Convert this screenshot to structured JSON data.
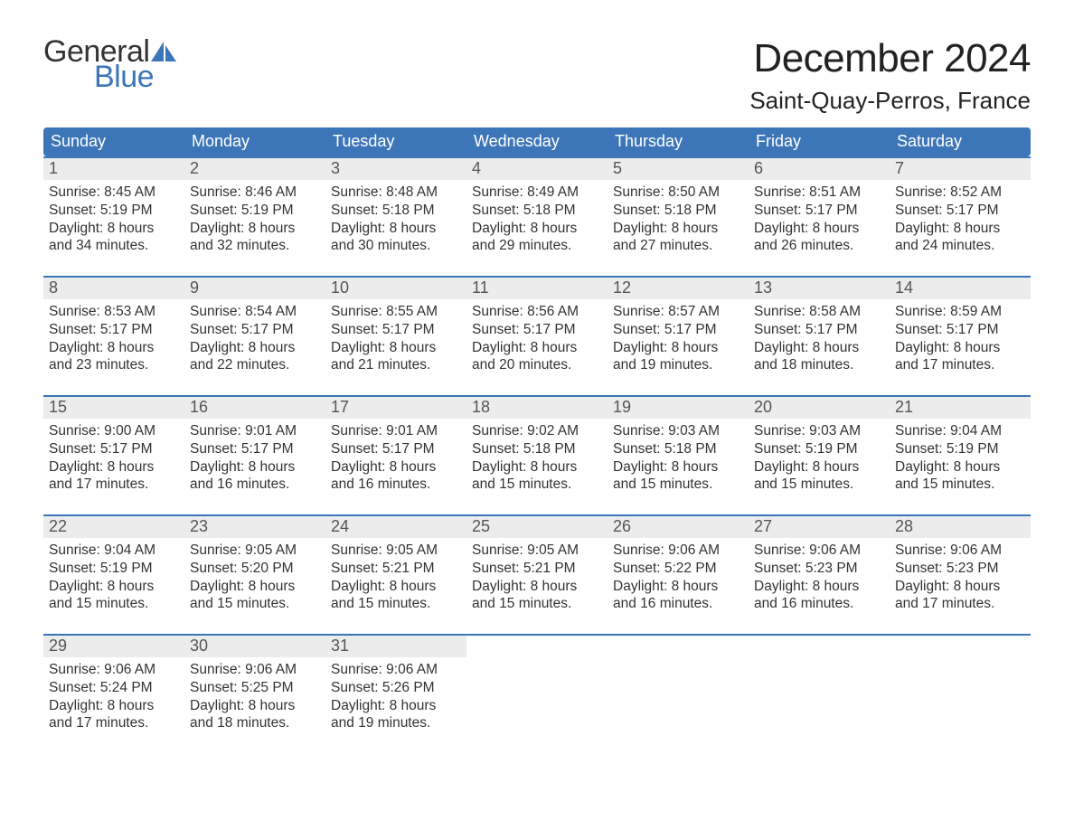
{
  "brand": {
    "text1": "General",
    "text2": "Blue",
    "accent_color": "#3d76b8"
  },
  "title": "December 2024",
  "location": "Saint-Quay-Perros, France",
  "header_bg": "#3d76b8",
  "daynum_bg": "#ececec",
  "text_color": "#333333",
  "weekdays": [
    "Sunday",
    "Monday",
    "Tuesday",
    "Wednesday",
    "Thursday",
    "Friday",
    "Saturday"
  ],
  "weeks": [
    [
      {
        "n": "1",
        "sunrise": "8:45 AM",
        "sunset": "5:19 PM",
        "daylight": "8 hours and 34 minutes."
      },
      {
        "n": "2",
        "sunrise": "8:46 AM",
        "sunset": "5:19 PM",
        "daylight": "8 hours and 32 minutes."
      },
      {
        "n": "3",
        "sunrise": "8:48 AM",
        "sunset": "5:18 PM",
        "daylight": "8 hours and 30 minutes."
      },
      {
        "n": "4",
        "sunrise": "8:49 AM",
        "sunset": "5:18 PM",
        "daylight": "8 hours and 29 minutes."
      },
      {
        "n": "5",
        "sunrise": "8:50 AM",
        "sunset": "5:18 PM",
        "daylight": "8 hours and 27 minutes."
      },
      {
        "n": "6",
        "sunrise": "8:51 AM",
        "sunset": "5:17 PM",
        "daylight": "8 hours and 26 minutes."
      },
      {
        "n": "7",
        "sunrise": "8:52 AM",
        "sunset": "5:17 PM",
        "daylight": "8 hours and 24 minutes."
      }
    ],
    [
      {
        "n": "8",
        "sunrise": "8:53 AM",
        "sunset": "5:17 PM",
        "daylight": "8 hours and 23 minutes."
      },
      {
        "n": "9",
        "sunrise": "8:54 AM",
        "sunset": "5:17 PM",
        "daylight": "8 hours and 22 minutes."
      },
      {
        "n": "10",
        "sunrise": "8:55 AM",
        "sunset": "5:17 PM",
        "daylight": "8 hours and 21 minutes."
      },
      {
        "n": "11",
        "sunrise": "8:56 AM",
        "sunset": "5:17 PM",
        "daylight": "8 hours and 20 minutes."
      },
      {
        "n": "12",
        "sunrise": "8:57 AM",
        "sunset": "5:17 PM",
        "daylight": "8 hours and 19 minutes."
      },
      {
        "n": "13",
        "sunrise": "8:58 AM",
        "sunset": "5:17 PM",
        "daylight": "8 hours and 18 minutes."
      },
      {
        "n": "14",
        "sunrise": "8:59 AM",
        "sunset": "5:17 PM",
        "daylight": "8 hours and 17 minutes."
      }
    ],
    [
      {
        "n": "15",
        "sunrise": "9:00 AM",
        "sunset": "5:17 PM",
        "daylight": "8 hours and 17 minutes."
      },
      {
        "n": "16",
        "sunrise": "9:01 AM",
        "sunset": "5:17 PM",
        "daylight": "8 hours and 16 minutes."
      },
      {
        "n": "17",
        "sunrise": "9:01 AM",
        "sunset": "5:17 PM",
        "daylight": "8 hours and 16 minutes."
      },
      {
        "n": "18",
        "sunrise": "9:02 AM",
        "sunset": "5:18 PM",
        "daylight": "8 hours and 15 minutes."
      },
      {
        "n": "19",
        "sunrise": "9:03 AM",
        "sunset": "5:18 PM",
        "daylight": "8 hours and 15 minutes."
      },
      {
        "n": "20",
        "sunrise": "9:03 AM",
        "sunset": "5:19 PM",
        "daylight": "8 hours and 15 minutes."
      },
      {
        "n": "21",
        "sunrise": "9:04 AM",
        "sunset": "5:19 PM",
        "daylight": "8 hours and 15 minutes."
      }
    ],
    [
      {
        "n": "22",
        "sunrise": "9:04 AM",
        "sunset": "5:19 PM",
        "daylight": "8 hours and 15 minutes."
      },
      {
        "n": "23",
        "sunrise": "9:05 AM",
        "sunset": "5:20 PM",
        "daylight": "8 hours and 15 minutes."
      },
      {
        "n": "24",
        "sunrise": "9:05 AM",
        "sunset": "5:21 PM",
        "daylight": "8 hours and 15 minutes."
      },
      {
        "n": "25",
        "sunrise": "9:05 AM",
        "sunset": "5:21 PM",
        "daylight": "8 hours and 15 minutes."
      },
      {
        "n": "26",
        "sunrise": "9:06 AM",
        "sunset": "5:22 PM",
        "daylight": "8 hours and 16 minutes."
      },
      {
        "n": "27",
        "sunrise": "9:06 AM",
        "sunset": "5:23 PM",
        "daylight": "8 hours and 16 minutes."
      },
      {
        "n": "28",
        "sunrise": "9:06 AM",
        "sunset": "5:23 PM",
        "daylight": "8 hours and 17 minutes."
      }
    ],
    [
      {
        "n": "29",
        "sunrise": "9:06 AM",
        "sunset": "5:24 PM",
        "daylight": "8 hours and 17 minutes."
      },
      {
        "n": "30",
        "sunrise": "9:06 AM",
        "sunset": "5:25 PM",
        "daylight": "8 hours and 18 minutes."
      },
      {
        "n": "31",
        "sunrise": "9:06 AM",
        "sunset": "5:26 PM",
        "daylight": "8 hours and 19 minutes."
      },
      null,
      null,
      null,
      null
    ]
  ],
  "labels": {
    "sunrise": "Sunrise:",
    "sunset": "Sunset:",
    "daylight": "Daylight:"
  }
}
